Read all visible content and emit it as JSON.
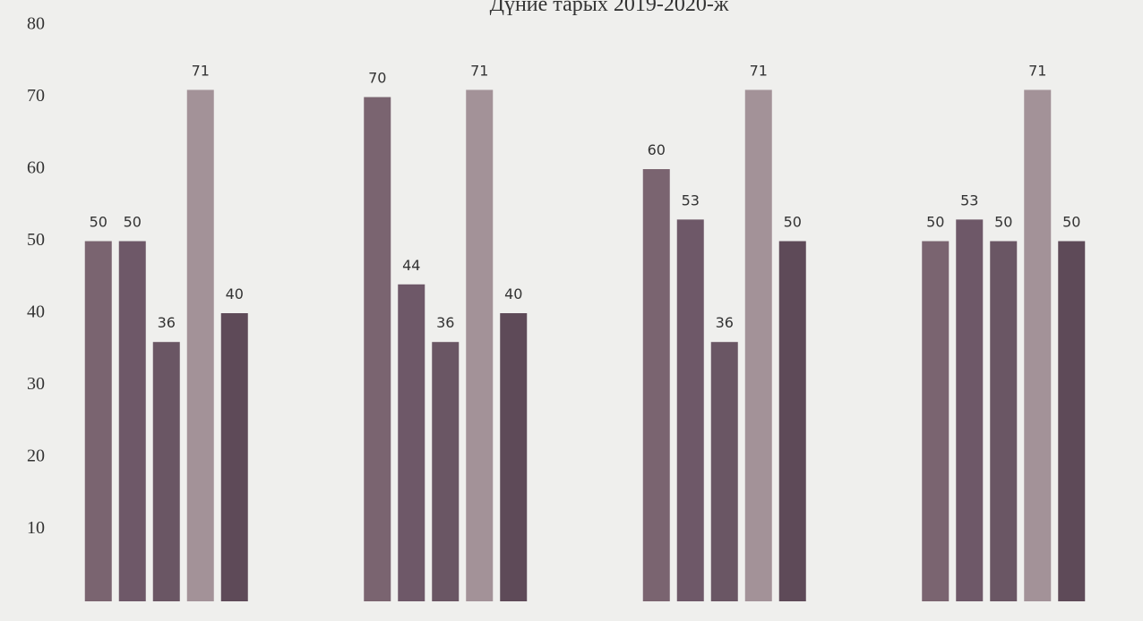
{
  "chart_data": {
    "type": "bar",
    "title": "Дүние тарых 2019-2020-ж",
    "categories": [
      null,
      null,
      null,
      null
    ],
    "series": [
      {
        "color": "#7a6470",
        "values": [
          50,
          70,
          60,
          50
        ]
      },
      {
        "color": "#6e5868",
        "values": [
          50,
          44,
          53,
          53
        ]
      },
      {
        "color": "#6a5664",
        "values": [
          36,
          36,
          36,
          50
        ]
      },
      {
        "color": "#a39298",
        "values": [
          71,
          71,
          71,
          71
        ]
      },
      {
        "color": "#5e4a58",
        "values": [
          40,
          40,
          50,
          50
        ]
      }
    ],
    "ylim": [
      0,
      80
    ],
    "yticks": [
      10,
      20,
      30,
      40,
      50,
      60,
      70,
      80
    ],
    "grid": false
  }
}
